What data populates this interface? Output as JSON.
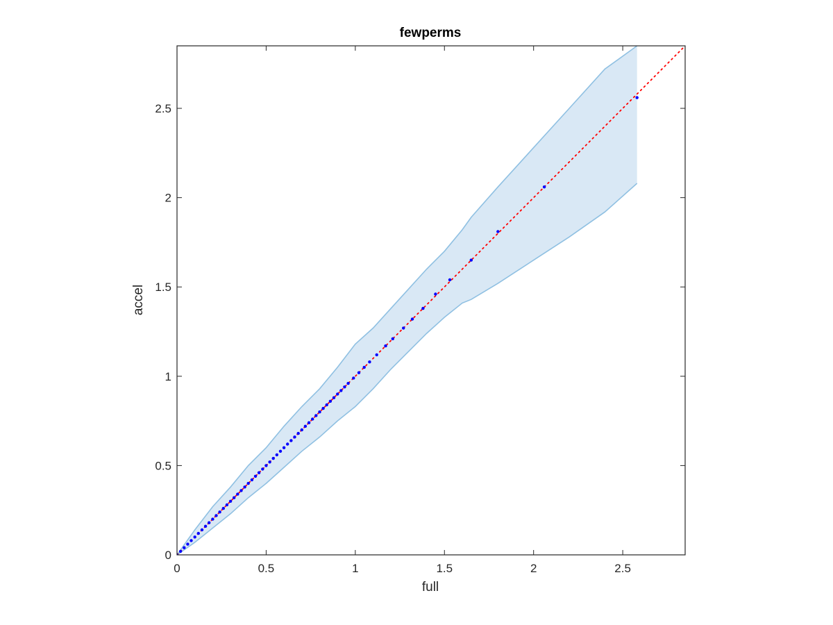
{
  "chart_data": {
    "type": "scatter",
    "title": "fewperms",
    "xlabel": "full",
    "ylabel": "accel",
    "xlim": [
      0,
      2.85
    ],
    "ylim": [
      0,
      2.85
    ],
    "xticks": [
      0,
      0.5,
      1,
      1.5,
      2,
      2.5
    ],
    "yticks": [
      0,
      0.5,
      1,
      1.5,
      2,
      2.5
    ],
    "xtick_labels": [
      "0",
      "0.5",
      "1",
      "1.5",
      "2",
      "2.5"
    ],
    "ytick_labels": [
      "0",
      "0.5",
      "1",
      "1.5",
      "2",
      "2.5"
    ],
    "grid": false,
    "colors": {
      "band_fill": "#d9e8f5",
      "band_edge": "#8fc0e2",
      "points": "#0000ff",
      "reference_line": "#ff0000",
      "axes": "#262626"
    },
    "band": {
      "x": [
        0,
        0.1,
        0.2,
        0.3,
        0.4,
        0.5,
        0.6,
        0.7,
        0.8,
        0.9,
        1.0,
        1.1,
        1.2,
        1.3,
        1.4,
        1.5,
        1.6,
        1.65,
        1.8,
        2.0,
        2.2,
        2.4,
        2.58
      ],
      "upper": [
        0,
        0.14,
        0.27,
        0.38,
        0.5,
        0.6,
        0.72,
        0.83,
        0.93,
        1.05,
        1.18,
        1.27,
        1.38,
        1.49,
        1.6,
        1.7,
        1.82,
        1.89,
        2.06,
        2.28,
        2.5,
        2.72,
        2.85
      ],
      "lower": [
        0,
        0.07,
        0.15,
        0.23,
        0.32,
        0.4,
        0.49,
        0.58,
        0.66,
        0.75,
        0.83,
        0.93,
        1.04,
        1.14,
        1.24,
        1.33,
        1.41,
        1.43,
        1.52,
        1.65,
        1.78,
        1.92,
        2.08
      ]
    },
    "points": {
      "x": [
        0,
        0.02,
        0.04,
        0.06,
        0.08,
        0.1,
        0.12,
        0.14,
        0.16,
        0.18,
        0.2,
        0.22,
        0.24,
        0.26,
        0.28,
        0.3,
        0.32,
        0.34,
        0.36,
        0.38,
        0.4,
        0.42,
        0.44,
        0.46,
        0.48,
        0.5,
        0.52,
        0.54,
        0.56,
        0.58,
        0.6,
        0.62,
        0.64,
        0.66,
        0.68,
        0.7,
        0.72,
        0.74,
        0.76,
        0.78,
        0.8,
        0.82,
        0.84,
        0.86,
        0.88,
        0.9,
        0.92,
        0.94,
        0.96,
        0.99,
        1.02,
        1.05,
        1.08,
        1.12,
        1.17,
        1.21,
        1.27,
        1.32,
        1.38,
        1.45,
        1.53,
        1.65,
        1.8,
        2.06,
        2.58
      ],
      "y": [
        0,
        0.02,
        0.04,
        0.06,
        0.08,
        0.1,
        0.12,
        0.14,
        0.16,
        0.18,
        0.2,
        0.22,
        0.24,
        0.26,
        0.28,
        0.3,
        0.32,
        0.34,
        0.36,
        0.38,
        0.4,
        0.42,
        0.44,
        0.46,
        0.48,
        0.5,
        0.52,
        0.54,
        0.56,
        0.58,
        0.6,
        0.62,
        0.64,
        0.66,
        0.68,
        0.7,
        0.72,
        0.74,
        0.76,
        0.78,
        0.8,
        0.82,
        0.84,
        0.86,
        0.88,
        0.9,
        0.92,
        0.94,
        0.96,
        0.99,
        1.02,
        1.05,
        1.08,
        1.12,
        1.17,
        1.21,
        1.27,
        1.32,
        1.38,
        1.46,
        1.54,
        1.65,
        1.81,
        2.06,
        2.56
      ]
    },
    "reference_line": {
      "x": [
        0,
        2.85
      ],
      "y": [
        0,
        2.85
      ],
      "style": "dotted"
    }
  }
}
